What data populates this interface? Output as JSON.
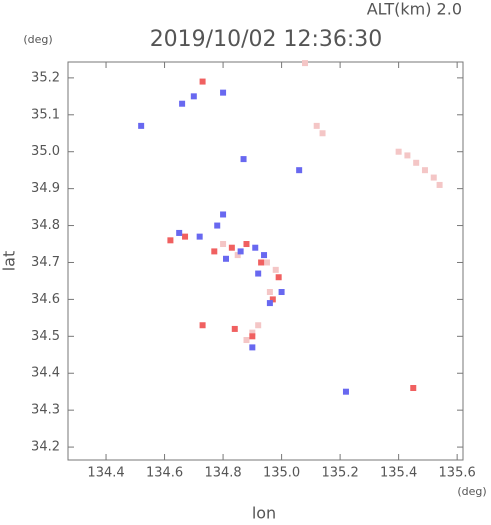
{
  "chart_data": {
    "type": "scatter",
    "title": "2019/10/02 12:36:30",
    "subtitle": "ALT(km) 2.0",
    "x_label": "lon",
    "y_label": "lat",
    "x_unit": "(deg)",
    "y_unit": "(deg)",
    "xlim": [
      134.27,
      135.62
    ],
    "ylim": [
      34.165,
      35.243
    ],
    "xticks": [
      134.4,
      134.6,
      134.8,
      {
        "value": 135,
        "label": "135.0"
      },
      135.2,
      135.4,
      135.6
    ],
    "yticks": [
      34.2,
      34.3,
      34.4,
      34.5,
      34.6,
      34.7,
      34.8,
      34.9,
      {
        "value": 35,
        "label": "35.0"
      },
      35.1,
      35.2
    ],
    "series": [
      {
        "color": "#f4c6c6",
        "x": [
          135.4,
          135.43,
          135.46,
          135.49,
          135.52,
          135.54,
          135.12,
          135.14,
          134.9,
          134.92,
          134.88,
          135.08,
          134.95,
          134.98,
          134.8,
          134.85,
          134.96
        ],
        "values": [
          35.0,
          34.99,
          34.97,
          34.95,
          34.93,
          34.91,
          35.07,
          35.05,
          34.51,
          34.53,
          34.49,
          35.24,
          34.7,
          34.68,
          34.75,
          34.72,
          34.62
        ]
      },
      {
        "color": "#f06060",
        "x": [
          134.73,
          135.45,
          134.67,
          134.62,
          134.77,
          134.83,
          134.88,
          134.93,
          134.99,
          134.97,
          134.9,
          134.73,
          134.84
        ],
        "values": [
          34.53,
          34.36,
          34.77,
          34.76,
          34.73,
          34.74,
          34.75,
          34.7,
          34.66,
          34.6,
          34.5,
          35.19,
          34.52
        ]
      },
      {
        "color": "#6868f0",
        "x": [
          135.06,
          135.22,
          134.65,
          134.72,
          134.78,
          134.8,
          134.81,
          134.86,
          134.91,
          134.94,
          134.92,
          134.96,
          135.0,
          134.9,
          134.7,
          134.66,
          134.52,
          134.87,
          134.8
        ],
        "values": [
          34.95,
          34.35,
          34.78,
          34.77,
          34.8,
          34.83,
          34.71,
          34.73,
          34.74,
          34.72,
          34.67,
          34.59,
          34.62,
          34.47,
          35.15,
          35.13,
          35.07,
          34.98,
          35.16
        ]
      }
    ]
  }
}
